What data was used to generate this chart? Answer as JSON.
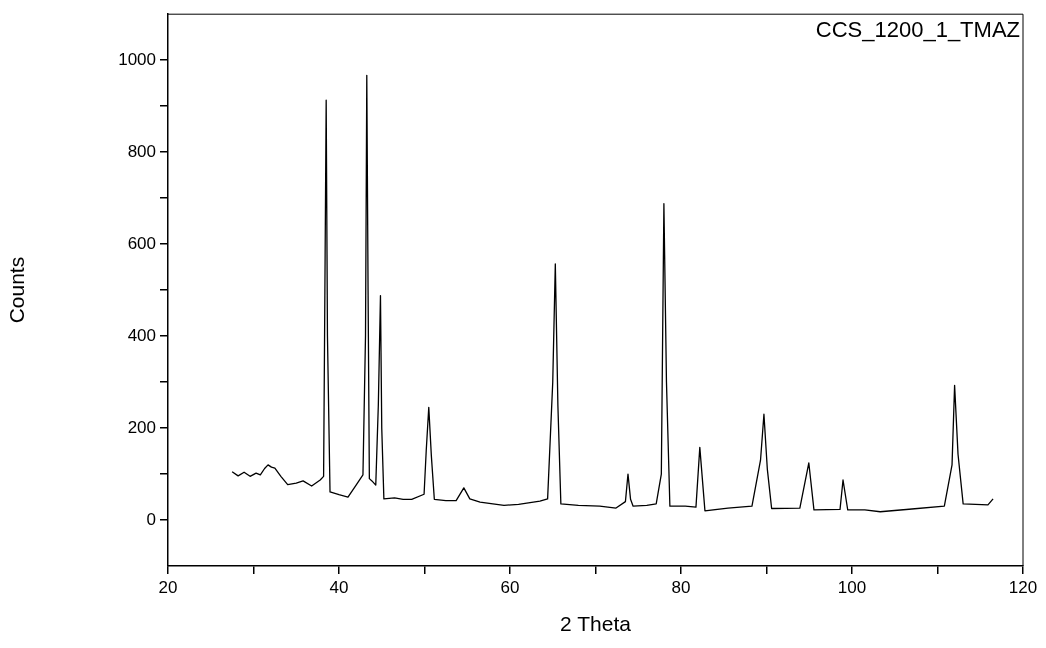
{
  "chart_data": {
    "type": "line",
    "xlabel": "2 Theta",
    "ylabel": "Counts",
    "annotations": [
      "CCS_1200_1_TMAZ"
    ],
    "xlim": [
      20,
      120
    ],
    "ylim": [
      -100,
      1100
    ],
    "xticks": [
      20,
      {
        "value": 30,
        "label": null
      },
      40,
      {
        "value": 50,
        "label": null
      },
      60,
      {
        "value": 70,
        "label": null
      },
      80,
      {
        "value": 90,
        "label": null
      },
      100,
      {
        "value": 110,
        "label": null
      },
      120
    ],
    "yticks": [
      0,
      {
        "value": 100,
        "label": null
      },
      200,
      {
        "value": 300,
        "label": null
      },
      400,
      {
        "value": 500,
        "label": null
      },
      600,
      {
        "value": 700,
        "label": null
      },
      800,
      {
        "value": 900,
        "label": null
      },
      1000
    ],
    "grid": false,
    "legend": false,
    "marker": "none",
    "line_style": "solid",
    "series": [
      {
        "color": "#000000",
        "x": [
          27.5,
          28.2,
          28.9,
          29.6,
          30.3,
          30.8,
          31.3,
          31.7,
          32.1,
          32.5,
          33.2,
          34.0,
          35.0,
          35.8,
          36.8,
          37.8,
          38.2,
          38.35,
          38.5,
          38.65,
          38.95,
          40.0,
          41.05,
          42.0,
          42.8,
          43.1,
          43.25,
          43.4,
          43.55,
          43.85,
          44.3,
          44.6,
          44.85,
          45.0,
          45.25,
          46.5,
          47.5,
          48.5,
          49.95,
          50.2,
          50.5,
          50.8,
          51.15,
          52.5,
          53.7,
          54.6,
          55.3,
          56.5,
          58.0,
          59.3,
          61.0,
          63.5,
          64.4,
          65.0,
          65.3,
          65.6,
          65.95,
          68.0,
          70.5,
          72.4,
          73.5,
          73.8,
          74.1,
          74.4,
          76.0,
          77.1,
          77.7,
          78.0,
          78.3,
          78.7,
          80.5,
          81.75,
          82.2,
          82.8,
          85.5,
          88.3,
          89.3,
          89.7,
          90.1,
          90.6,
          93.9,
          94.95,
          95.55,
          98.6,
          98.95,
          99.5,
          101.5,
          103.3,
          107.0,
          110.8,
          111.7,
          112.0,
          112.4,
          113.0,
          115.9,
          116.5
        ],
        "values": [
          105,
          96,
          104,
          95,
          102,
          98,
          112,
          120,
          115,
          113,
          95,
          77,
          80,
          85,
          74,
          87,
          95,
          500,
          913,
          400,
          61,
          55,
          50,
          76,
          98,
          400,
          967,
          500,
          90,
          85,
          76,
          250,
          488,
          200,
          46,
          48,
          45,
          45,
          56,
          150,
          245,
          140,
          45,
          42,
          42,
          70,
          46,
          39,
          35,
          32,
          34,
          41,
          46,
          300,
          557,
          250,
          35,
          32,
          30,
          26,
          40,
          100,
          45,
          30,
          32,
          35,
          100,
          688,
          300,
          30,
          30,
          28,
          158,
          20,
          26,
          30,
          130,
          230,
          110,
          25,
          26,
          124,
          22,
          23,
          87,
          22,
          22,
          18,
          24,
          30,
          120,
          293,
          143,
          35,
          33,
          46
        ]
      }
    ]
  }
}
